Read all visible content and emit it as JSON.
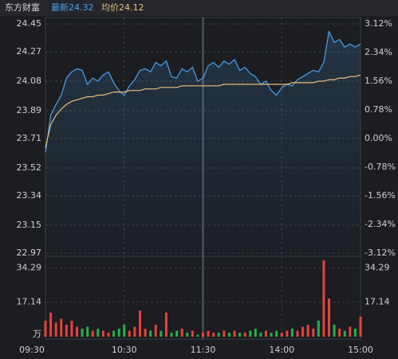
{
  "header": {
    "title": "东方财富",
    "latest": 24.32,
    "avg": 24.12
  },
  "chart_data": {
    "type": "line",
    "x": [
      0,
      4,
      8,
      12,
      16,
      20,
      24,
      28,
      32,
      36,
      40,
      44,
      48,
      52,
      56,
      60,
      64,
      68,
      72,
      76,
      80,
      84,
      88,
      92,
      96,
      100,
      104,
      108,
      112,
      116,
      120,
      124,
      128,
      132,
      136,
      140,
      144,
      148,
      152,
      156,
      160,
      164,
      168,
      172,
      176,
      180,
      184,
      188,
      192,
      196,
      200,
      204,
      208,
      212,
      216,
      220,
      224,
      228,
      232,
      236,
      240
    ],
    "xlim": [
      0,
      240
    ],
    "xticks": [
      {
        "value": 0,
        "label": "09:30"
      },
      {
        "value": 60,
        "label": "10:30"
      },
      {
        "value": 120,
        "label": "11:30"
      },
      {
        "value": 180,
        "label": "14:00"
      },
      {
        "value": 240,
        "label": "15:00"
      }
    ],
    "series": [
      {
        "name": "最新",
        "color": "#4aa3f0",
        "values": [
          23.62,
          23.86,
          23.93,
          23.99,
          24.1,
          24.14,
          24.16,
          24.15,
          24.06,
          24.1,
          24.08,
          24.12,
          24.14,
          24.07,
          24.02,
          23.99,
          24.05,
          24.09,
          24.15,
          24.16,
          24.14,
          24.2,
          24.18,
          24.21,
          24.11,
          24.1,
          24.16,
          24.14,
          24.17,
          24.08,
          24.1,
          24.18,
          24.2,
          24.17,
          24.21,
          24.19,
          24.22,
          24.15,
          24.17,
          24.13,
          24.11,
          24.06,
          24.08,
          24.02,
          23.99,
          24.04,
          24.06,
          24.05,
          24.09,
          24.11,
          24.13,
          24.15,
          24.14,
          24.2,
          24.4,
          24.33,
          24.35,
          24.3,
          24.32,
          24.3,
          24.32
        ]
      },
      {
        "name": "均价",
        "color": "#e8c07a",
        "values": [
          23.65,
          23.8,
          23.86,
          23.9,
          23.93,
          23.95,
          23.96,
          23.97,
          23.98,
          23.98,
          23.99,
          23.99,
          24.0,
          24.01,
          24.01,
          24.01,
          24.02,
          24.02,
          24.02,
          24.03,
          24.03,
          24.03,
          24.04,
          24.04,
          24.04,
          24.04,
          24.05,
          24.05,
          24.05,
          24.05,
          24.05,
          24.05,
          24.05,
          24.05,
          24.06,
          24.06,
          24.06,
          24.06,
          24.06,
          24.06,
          24.06,
          24.06,
          24.06,
          24.06,
          24.06,
          24.06,
          24.06,
          24.07,
          24.07,
          24.07,
          24.07,
          24.07,
          24.08,
          24.08,
          24.09,
          24.09,
          24.1,
          24.1,
          24.11,
          24.11,
          24.12
        ]
      }
    ],
    "ylim": [
      22.97,
      24.45
    ],
    "yticks": [
      24.45,
      24.27,
      24.08,
      23.89,
      23.71,
      23.52,
      23.34,
      23.15,
      22.97
    ],
    "y2lim": [
      -3.12,
      3.12
    ],
    "y2ticks": [
      {
        "value": 3.12,
        "label": "3.12%"
      },
      {
        "value": 2.34,
        "label": "2.34%"
      },
      {
        "value": 1.56,
        "label": "1.56%"
      },
      {
        "value": 0.78,
        "label": "0.78%"
      },
      {
        "value": 0,
        "label": "0.00%"
      },
      {
        "value": -0.78,
        "label": "-0.78%"
      },
      {
        "value": -1.56,
        "label": "-1.56%"
      },
      {
        "value": -2.34,
        "label": "-2.34%"
      },
      {
        "value": -3.12,
        "label": "-3.12%"
      }
    ],
    "up_color": "#e8413c",
    "down_color": "#22b14c",
    "grid": true,
    "volume": {
      "values": [
        8,
        12,
        7,
        9,
        6,
        8,
        5,
        4,
        5,
        3,
        4,
        3,
        2,
        3,
        4,
        6,
        3,
        5,
        13,
        4,
        3,
        6,
        3,
        12,
        2,
        3,
        4,
        2,
        3,
        1,
        2,
        3,
        2,
        2,
        3,
        2,
        3,
        2,
        2,
        3,
        4,
        2,
        3,
        2,
        3,
        2,
        3,
        4,
        3,
        5,
        6,
        4,
        8,
        38,
        19,
        6,
        4,
        3,
        5,
        4,
        10
      ],
      "ylim": [
        0,
        38
      ],
      "yticks": [
        17.14,
        34.29
      ],
      "unit": "万"
    }
  }
}
